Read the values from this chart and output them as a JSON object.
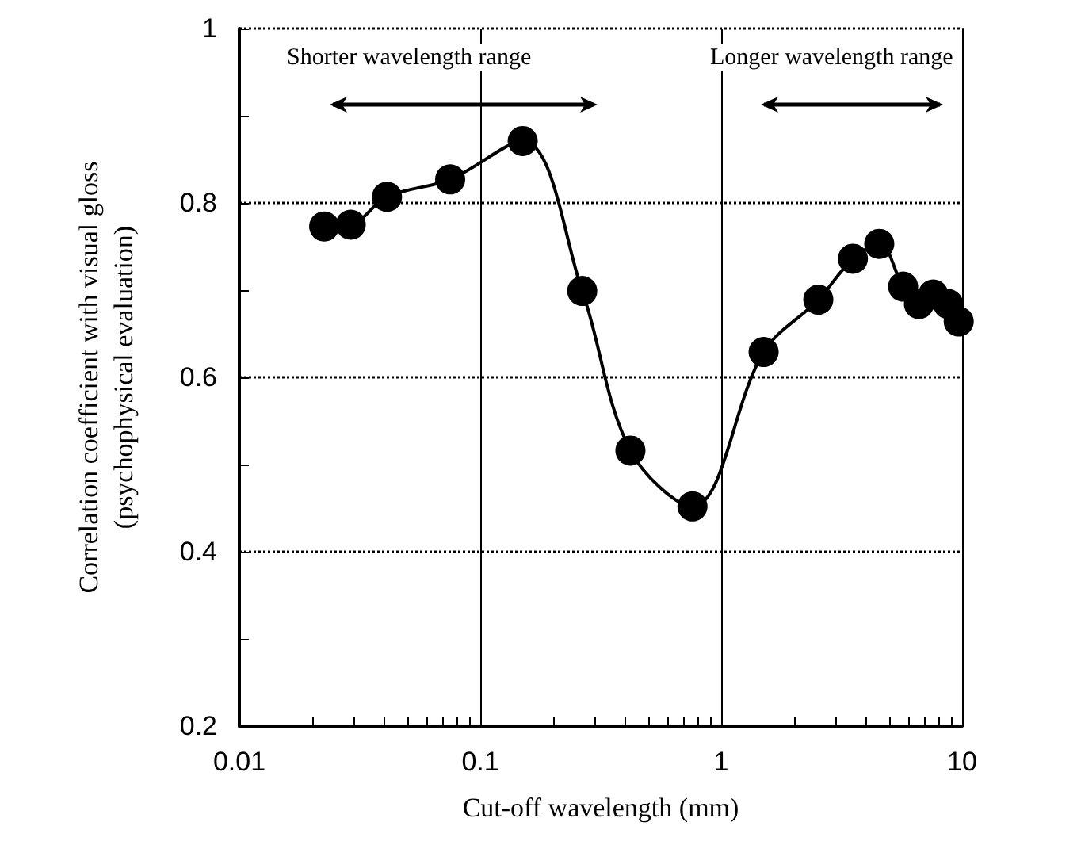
{
  "chart_data": {
    "type": "line",
    "xlabel": "Cut-off wavelength (mm)",
    "ylabel": "Correlation coefficient with visual gloss\n(psychophysical evaluation)",
    "annotations": [
      "Shorter wavelength range",
      "Longer wavelength range"
    ],
    "x": [
      0.0225,
      0.029,
      0.041,
      0.075,
      0.15,
      0.265,
      0.42,
      0.76,
      1.5,
      2.53,
      3.52,
      4.53,
      5.69,
      6.62,
      7.59,
      8.75,
      9.68
    ],
    "series": [
      {
        "color": "#000000",
        "values": [
          0.773,
          0.775,
          0.807,
          0.827,
          0.871,
          0.699,
          0.516,
          0.452,
          0.629,
          0.689,
          0.736,
          0.753,
          0.704,
          0.684,
          0.695,
          0.684,
          0.664
        ]
      }
    ],
    "log": "x",
    "xlim": [
      0.01,
      10
    ],
    "xticks": [
      0.01,
      {
        "value": 0.02,
        "label": null
      },
      {
        "value": 0.03,
        "label": null
      },
      {
        "value": 0.04,
        "label": null
      },
      {
        "value": 0.05,
        "label": null
      },
      {
        "value": 0.06,
        "label": null
      },
      {
        "value": 0.07,
        "label": null
      },
      {
        "value": 0.08,
        "label": null
      },
      {
        "value": 0.09,
        "label": null
      },
      0.1,
      {
        "value": 0.2,
        "label": null
      },
      {
        "value": 0.3,
        "label": null
      },
      {
        "value": 0.4,
        "label": null
      },
      {
        "value": 0.5,
        "label": null
      },
      {
        "value": 0.6,
        "label": null
      },
      {
        "value": 0.7,
        "label": null
      },
      {
        "value": 0.8,
        "label": null
      },
      {
        "value": 0.9,
        "label": null
      },
      1,
      {
        "value": 2,
        "label": null
      },
      {
        "value": 3,
        "label": null
      },
      {
        "value": 4,
        "label": null
      },
      {
        "value": 5,
        "label": null
      },
      {
        "value": 6,
        "label": null
      },
      {
        "value": 7,
        "label": null
      },
      {
        "value": 8,
        "label": null
      },
      {
        "value": 9,
        "label": null
      },
      10
    ],
    "ylim": [
      0.2,
      1
    ],
    "yticks": [
      0.2,
      {
        "value": 0.3,
        "label": null
      },
      0.4,
      {
        "value": 0.5,
        "label": null
      },
      0.6,
      {
        "value": 0.7,
        "label": null
      },
      0.8,
      {
        "value": 0.9,
        "label": null
      },
      1
    ],
    "grid": "y",
    "ref_lines": [
      {
        "axis": "x",
        "value": 0.1,
        "color": "#000000",
        "line_style": "solid"
      },
      {
        "axis": "x",
        "value": 1,
        "color": "#000000",
        "line_style": "solid"
      }
    ],
    "marker": "circle",
    "line_style": "solid"
  }
}
